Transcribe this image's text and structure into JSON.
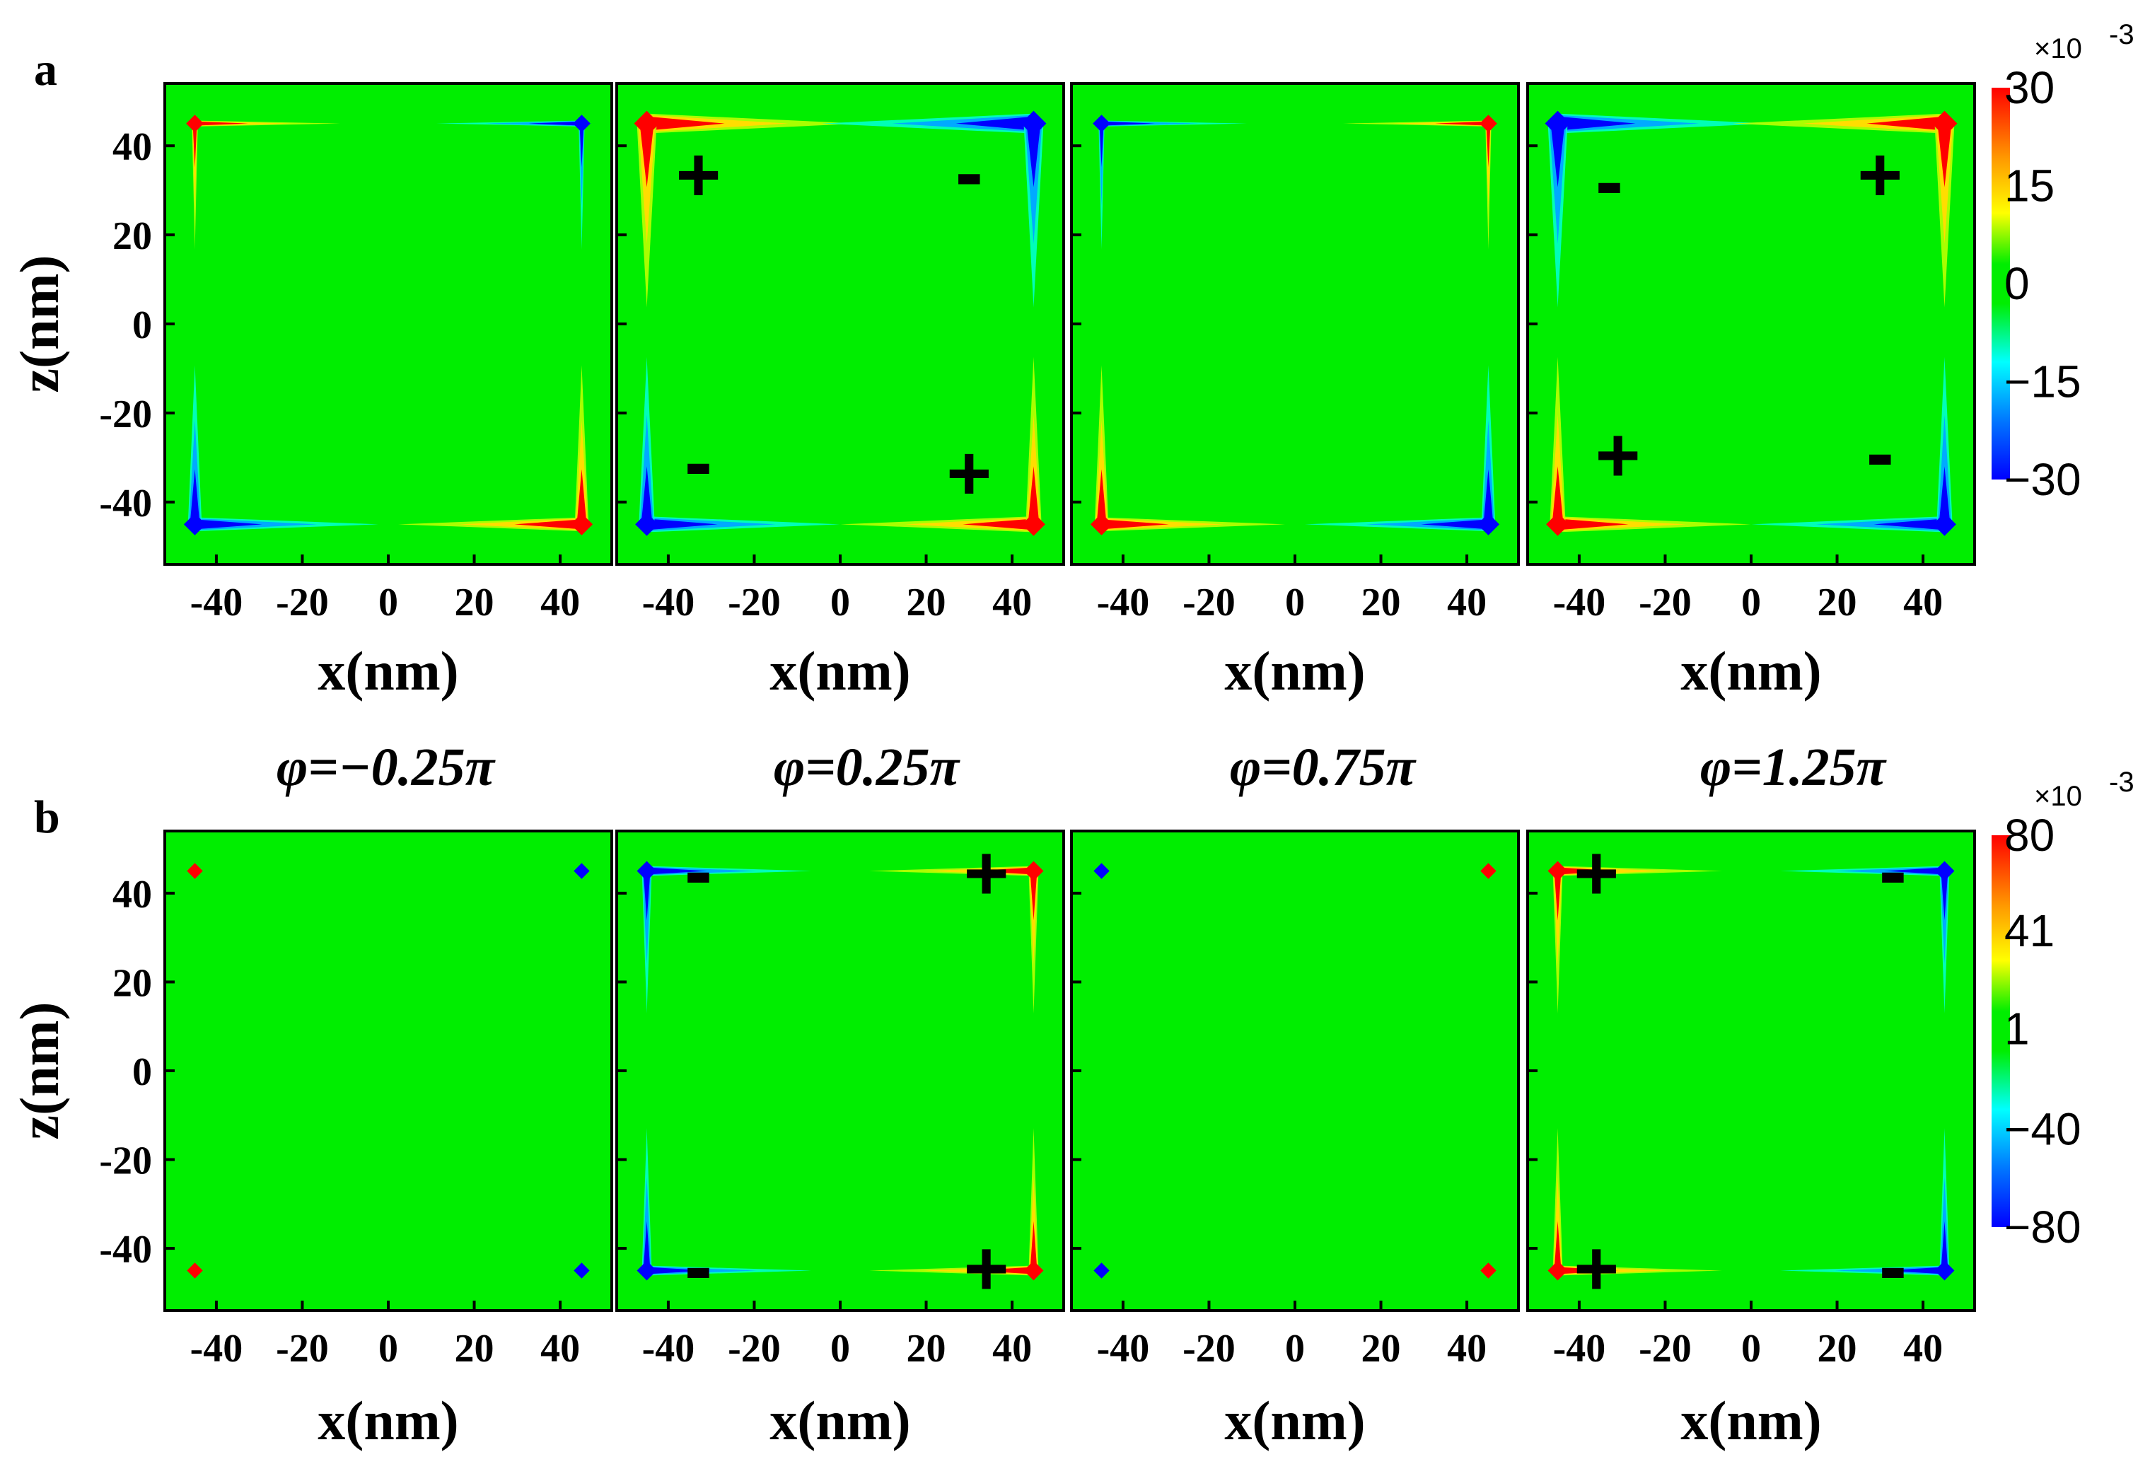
{
  "chart_data": {
    "type": "heatmap",
    "x_ticks": [
      "-40",
      "-20",
      "0",
      "20",
      "40"
    ],
    "z_ticks": [
      "40",
      "20",
      "0",
      "-20",
      "-40"
    ],
    "x_values": [
      -40,
      -20,
      0,
      20,
      40
    ],
    "z_values": [
      40,
      20,
      0,
      -20,
      -40
    ],
    "xlim": [
      -52,
      52
    ],
    "zlim": [
      -54,
      54
    ],
    "xlabel": "x(nm)",
    "zlabel": "z(nm)",
    "phi_labels": [
      "φ=−0.25π",
      "φ=0.25π",
      "φ=0.75π",
      "φ=1.25π"
    ],
    "panels": [
      {
        "label": "a",
        "colorbar": {
          "ticks": [
            "30",
            "15",
            "0",
            "−15",
            "−30"
          ],
          "tick_values": [
            30,
            15,
            0,
            -15,
            -30
          ],
          "multiplier": "×10",
          "exponent": "-3"
        },
        "subplots": [
          {
            "spots": [
              {
                "x": -45,
                "z": 45,
                "sign": "pos",
                "strength": 0.3
              },
              {
                "x": 45,
                "z": 45,
                "sign": "neg",
                "strength": 0.3
              },
              {
                "x": -45,
                "z": -45,
                "sign": "neg",
                "strength": 0.7
              },
              {
                "x": 45,
                "z": -45,
                "sign": "pos",
                "strength": 0.7
              }
            ],
            "marks": []
          },
          {
            "spots": [
              {
                "x": -45,
                "z": 45,
                "sign": "pos",
                "strength": 1
              },
              {
                "x": 45,
                "z": 45,
                "sign": "neg",
                "strength": 1
              },
              {
                "x": -45,
                "z": -45,
                "sign": "neg",
                "strength": 0.8
              },
              {
                "x": 45,
                "z": -45,
                "sign": "pos",
                "strength": 0.8
              }
            ],
            "marks": [
              {
                "x": -33,
                "z": 32,
                "text": "+"
              },
              {
                "x": 30,
                "z": 32,
                "text": "-"
              },
              {
                "x": -33,
                "z": -33,
                "text": "-"
              },
              {
                "x": 30,
                "z": -35,
                "text": "+"
              }
            ]
          },
          {
            "spots": [
              {
                "x": -45,
                "z": 45,
                "sign": "neg",
                "strength": 0.3
              },
              {
                "x": 45,
                "z": 45,
                "sign": "pos",
                "strength": 0.3
              },
              {
                "x": -45,
                "z": -45,
                "sign": "pos",
                "strength": 0.7
              },
              {
                "x": 45,
                "z": -45,
                "sign": "neg",
                "strength": 0.7
              }
            ],
            "marks": []
          },
          {
            "spots": [
              {
                "x": -45,
                "z": 45,
                "sign": "neg",
                "strength": 1
              },
              {
                "x": 45,
                "z": 45,
                "sign": "pos",
                "strength": 1
              },
              {
                "x": -45,
                "z": -45,
                "sign": "pos",
                "strength": 0.8
              },
              {
                "x": 45,
                "z": -45,
                "sign": "neg",
                "strength": 0.8
              }
            ],
            "marks": [
              {
                "x": -33,
                "z": 30,
                "text": "-"
              },
              {
                "x": 30,
                "z": 32,
                "text": "+"
              },
              {
                "x": -31,
                "z": -31,
                "text": "+"
              },
              {
                "x": 30,
                "z": -31,
                "text": "-"
              }
            ]
          }
        ]
      },
      {
        "label": "b",
        "colorbar": {
          "ticks": [
            "80",
            "41",
            "1",
            "−40",
            "−80"
          ],
          "tick_values": [
            80,
            41,
            1,
            -40,
            -80
          ],
          "multiplier": "×10",
          "exponent": "-3"
        },
        "subplots": [
          {
            "spots": [
              {
                "x": -45,
                "z": 45,
                "sign": "pos",
                "strength": 0.15
              },
              {
                "x": 45,
                "z": 45,
                "sign": "neg",
                "strength": 0.15
              },
              {
                "x": -45,
                "z": -45,
                "sign": "pos",
                "strength": 0.15
              },
              {
                "x": 45,
                "z": -45,
                "sign": "neg",
                "strength": 0.15
              }
            ],
            "marks": []
          },
          {
            "spots": [
              {
                "x": -45,
                "z": 45,
                "sign": "neg",
                "strength": 0.5
              },
              {
                "x": 45,
                "z": 45,
                "sign": "pos",
                "strength": 0.5
              },
              {
                "x": -45,
                "z": -45,
                "sign": "neg",
                "strength": 0.5
              },
              {
                "x": 45,
                "z": -45,
                "sign": "pos",
                "strength": 0.5
              }
            ],
            "marks": [
              {
                "x": -33,
                "z": 43,
                "text": "-"
              },
              {
                "x": 34,
                "z": 43,
                "text": "+"
              },
              {
                "x": -33,
                "z": -46,
                "text": "-"
              },
              {
                "x": 34,
                "z": -46,
                "text": "+"
              }
            ]
          },
          {
            "spots": [
              {
                "x": -45,
                "z": 45,
                "sign": "neg",
                "strength": 0.15
              },
              {
                "x": 45,
                "z": 45,
                "sign": "pos",
                "strength": 0.15
              },
              {
                "x": -45,
                "z": -45,
                "sign": "neg",
                "strength": 0.15
              },
              {
                "x": 45,
                "z": -45,
                "sign": "pos",
                "strength": 0.15
              }
            ],
            "marks": []
          },
          {
            "spots": [
              {
                "x": -45,
                "z": 45,
                "sign": "pos",
                "strength": 0.5
              },
              {
                "x": 45,
                "z": 45,
                "sign": "neg",
                "strength": 0.5
              },
              {
                "x": -45,
                "z": -45,
                "sign": "pos",
                "strength": 0.5
              },
              {
                "x": 45,
                "z": -45,
                "sign": "neg",
                "strength": 0.5
              }
            ],
            "marks": [
              {
                "x": -36,
                "z": 43,
                "text": "+"
              },
              {
                "x": 33,
                "z": 43,
                "text": "-"
              },
              {
                "x": -36,
                "z": -46,
                "text": "+"
              },
              {
                "x": 33,
                "z": -46,
                "text": "-"
              }
            ]
          }
        ]
      }
    ]
  }
}
